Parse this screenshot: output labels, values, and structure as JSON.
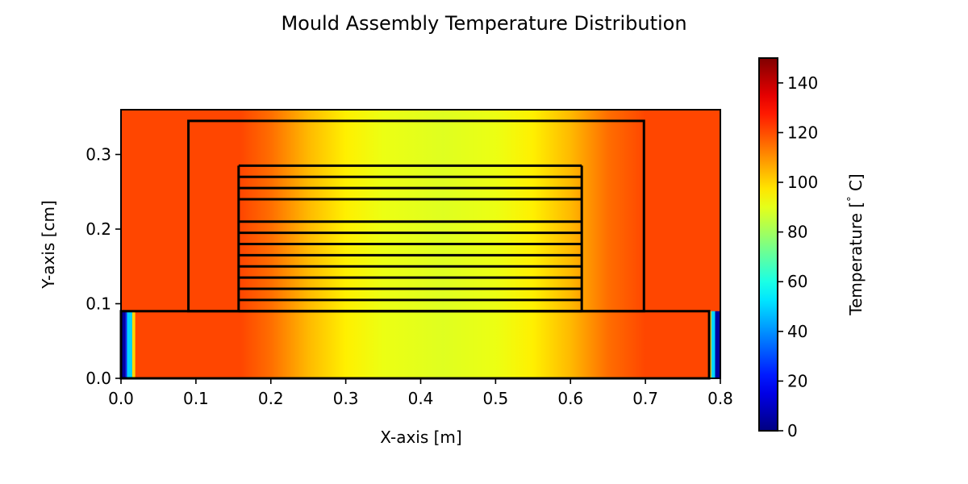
{
  "chart_data": {
    "type": "heatmap",
    "title": "Mould Assembly Temperature Distribution",
    "xlabel": "X-axis [m]",
    "ylabel": "Y-axis [cm]",
    "xlim": [
      0.0,
      0.8
    ],
    "ylim": [
      0.0,
      0.36
    ],
    "xticks": [
      0.0,
      0.1,
      0.2,
      0.3,
      0.4,
      0.5,
      0.6,
      0.7,
      0.8
    ],
    "xtick_labels": [
      "0.0",
      "0.1",
      "0.2",
      "0.3",
      "0.4",
      "0.5",
      "0.6",
      "0.7",
      "0.8"
    ],
    "yticks": [
      0.0,
      0.1,
      0.2,
      0.3
    ],
    "ytick_labels": [
      "0.0",
      "0.1",
      "0.2",
      "0.3"
    ],
    "grid": false,
    "colormap": "jet",
    "colorbar": {
      "label": "Temperature [$^\\circ$C]",
      "label_text": "Temperature [",
      "label_degree": "°",
      "label_unit": " C]",
      "vmin": 0,
      "vmax": 150,
      "ticks": [
        0,
        20,
        40,
        60,
        80,
        100,
        120,
        140
      ],
      "tick_labels": [
        "0",
        "20",
        "40",
        "60",
        "80",
        "100",
        "120",
        "140"
      ]
    },
    "temperature_field": {
      "ambient": 121,
      "center_x": 0.43,
      "center_temperature": 89,
      "profile": [
        {
          "x": 0.0,
          "t": 121
        },
        {
          "x": 0.16,
          "t": 121
        },
        {
          "x": 0.2,
          "t": 115
        },
        {
          "x": 0.25,
          "t": 104
        },
        {
          "x": 0.3,
          "t": 96
        },
        {
          "x": 0.35,
          "t": 91
        },
        {
          "x": 0.43,
          "t": 89
        },
        {
          "x": 0.5,
          "t": 91
        },
        {
          "x": 0.55,
          "t": 96
        },
        {
          "x": 0.6,
          "t": 104
        },
        {
          "x": 0.65,
          "t": 115
        },
        {
          "x": 0.7,
          "t": 121
        },
        {
          "x": 0.8,
          "t": 121
        }
      ],
      "base_edge_strips": [
        {
          "x0": 0.0,
          "x1": 0.006,
          "t": 5
        },
        {
          "x0": 0.006,
          "x1": 0.008,
          "t": 25
        },
        {
          "x0": 0.008,
          "x1": 0.015,
          "t": 50
        },
        {
          "x0": 0.015,
          "x1": 0.019,
          "t": 100
        },
        {
          "x0": 0.785,
          "x1": 0.788,
          "t": 100
        },
        {
          "x0": 0.788,
          "x1": 0.793,
          "t": 50
        },
        {
          "x0": 0.793,
          "x1": 0.8,
          "t": 5
        }
      ],
      "base_y_range": [
        0.0,
        0.09
      ]
    },
    "outlines": {
      "base_plate": {
        "x0": 0.0,
        "x1": 0.785,
        "y0": 0.0,
        "y1": 0.09
      },
      "outer_frame": {
        "x0": 0.09,
        "x1": 0.698,
        "y0": 0.09,
        "y1": 0.345
      },
      "inner_stack": {
        "x0": 0.157,
        "x1": 0.615
      },
      "stack_lines_y": [
        0.09,
        0.105,
        0.12,
        0.135,
        0.15,
        0.165,
        0.18,
        0.195,
        0.21,
        0.24,
        0.255,
        0.27,
        0.285
      ]
    }
  }
}
